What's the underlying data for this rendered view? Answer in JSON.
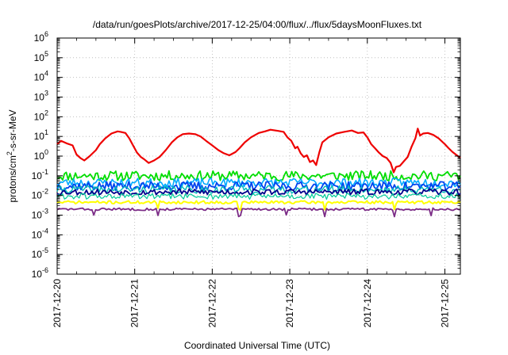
{
  "chart_data": {
    "type": "line",
    "title": "/data/run/goesPlots/archive/2017-12-25/04:00/flux/../flux/5daysMoonFluxes.txt",
    "xlabel": "Coordinated Universal Time (UTC)",
    "ylabel": "protons/cm2-s-sr-MeV",
    "ylabel_parts": [
      "protons/cm",
      "2",
      "-s-sr-MeV"
    ],
    "y_scale": "log",
    "ylim": [
      1e-06,
      1000000.0
    ],
    "xlim": [
      0,
      5.2
    ],
    "grid": true,
    "y_ticks": [
      {
        "base": "10",
        "exp": "-6"
      },
      {
        "base": "10",
        "exp": "-5"
      },
      {
        "base": "10",
        "exp": "-4"
      },
      {
        "base": "10",
        "exp": "-3"
      },
      {
        "base": "10",
        "exp": "-2"
      },
      {
        "base": "10",
        "exp": "-1"
      },
      {
        "base": "10",
        "exp": "0"
      },
      {
        "base": "10",
        "exp": "1"
      },
      {
        "base": "10",
        "exp": "2"
      },
      {
        "base": "10",
        "exp": "3"
      },
      {
        "base": "10",
        "exp": "4"
      },
      {
        "base": "10",
        "exp": "5"
      },
      {
        "base": "10",
        "exp": "6"
      }
    ],
    "x_tick_labels": [
      "2017-12-20",
      "2017-12-21",
      "2017-12-22",
      "2017-12-23",
      "2017-12-24",
      "2017-12-25"
    ],
    "series": [
      {
        "color": "#ee0000",
        "width": 2.2,
        "points": [
          [
            0,
            4
          ],
          [
            0.05,
            6
          ],
          [
            0.12,
            4.5
          ],
          [
            0.2,
            3.5
          ],
          [
            0.25,
            1.2
          ],
          [
            0.3,
            0.8
          ],
          [
            0.35,
            0.6
          ],
          [
            0.42,
            1
          ],
          [
            0.5,
            2
          ],
          [
            0.55,
            4
          ],
          [
            0.62,
            8
          ],
          [
            0.7,
            14
          ],
          [
            0.78,
            18
          ],
          [
            0.82,
            17
          ],
          [
            0.88,
            15
          ],
          [
            0.93,
            8
          ],
          [
            0.97,
            4
          ],
          [
            1.03,
            1.5
          ],
          [
            1.08,
            0.9
          ],
          [
            1.12,
            0.7
          ],
          [
            1.18,
            0.45
          ],
          [
            1.25,
            0.6
          ],
          [
            1.32,
            0.9
          ],
          [
            1.4,
            2
          ],
          [
            1.48,
            5
          ],
          [
            1.55,
            9
          ],
          [
            1.62,
            13
          ],
          [
            1.7,
            14
          ],
          [
            1.78,
            13
          ],
          [
            1.85,
            10
          ],
          [
            1.92,
            6
          ],
          [
            2,
            3.5
          ],
          [
            2.08,
            2
          ],
          [
            2.15,
            1.4
          ],
          [
            2.22,
            1.1
          ],
          [
            2.3,
            1.6
          ],
          [
            2.35,
            2.5
          ],
          [
            2.42,
            5
          ],
          [
            2.5,
            9
          ],
          [
            2.6,
            15
          ],
          [
            2.68,
            18
          ],
          [
            2.75,
            22
          ],
          [
            2.85,
            19
          ],
          [
            2.92,
            17
          ],
          [
            2.97,
            9
          ],
          [
            3.02,
            6
          ],
          [
            3.07,
            2.5
          ],
          [
            3.1,
            3
          ],
          [
            3.14,
            1.4
          ],
          [
            3.18,
            0.9
          ],
          [
            3.22,
            1.1
          ],
          [
            3.26,
            0.5
          ],
          [
            3.3,
            0.6
          ],
          [
            3.34,
            0.35
          ],
          [
            3.38,
            1.5
          ],
          [
            3.42,
            5
          ],
          [
            3.5,
            9
          ],
          [
            3.6,
            14
          ],
          [
            3.7,
            17
          ],
          [
            3.8,
            20
          ],
          [
            3.88,
            15
          ],
          [
            3.95,
            16
          ],
          [
            4,
            9
          ],
          [
            4.05,
            4
          ],
          [
            4.1,
            2.5
          ],
          [
            4.15,
            1.5
          ],
          [
            4.2,
            1
          ],
          [
            4.25,
            0.8
          ],
          [
            4.3,
            0.45
          ],
          [
            4.34,
            0.15
          ],
          [
            4.37,
            0.28
          ],
          [
            4.42,
            0.32
          ],
          [
            4.48,
            0.6
          ],
          [
            4.52,
            0.9
          ],
          [
            4.57,
            3
          ],
          [
            4.62,
            8
          ],
          [
            4.65,
            25
          ],
          [
            4.68,
            11
          ],
          [
            4.72,
            14
          ],
          [
            4.78,
            15
          ],
          [
            4.85,
            12
          ],
          [
            4.92,
            8
          ],
          [
            5,
            4
          ],
          [
            5.05,
            2.5
          ],
          [
            5.1,
            1.6
          ],
          [
            5.2,
            0.8
          ]
        ]
      },
      {
        "color": "#00dd00",
        "width": 1.8,
        "base": 0.1,
        "amp": 0.5,
        "seed": 11
      },
      {
        "color": "#00aaff",
        "width": 1.6,
        "base": 0.045,
        "amp": 0.45,
        "seed": 23
      },
      {
        "color": "#0044ee",
        "width": 1.8,
        "base": 0.03,
        "amp": 0.45,
        "seed": 37
      },
      {
        "color": "#00bbbb",
        "width": 1.4,
        "base": 0.02,
        "amp": 0.4,
        "seed": 41
      },
      {
        "color": "#00008b",
        "width": 1.8,
        "base": 0.015,
        "amp": 0.3,
        "seed": 53
      },
      {
        "color": "#00cc99",
        "width": 1.2,
        "base": 0.009,
        "amp": 0.3,
        "seed": 61
      },
      {
        "color": "#ffff00",
        "width": 2.0,
        "base": 0.0045,
        "amp": 0.15,
        "seed": 71,
        "dips": [
          1.3,
          2.35,
          3.45,
          4.35
        ]
      },
      {
        "color": "#7b2b86",
        "width": 1.8,
        "base": 0.002,
        "amp": 0.12,
        "seed": 83,
        "dips": [
          0.48,
          1.3,
          2.35,
          2.95,
          3.45,
          4.35,
          4.82
        ]
      }
    ]
  }
}
